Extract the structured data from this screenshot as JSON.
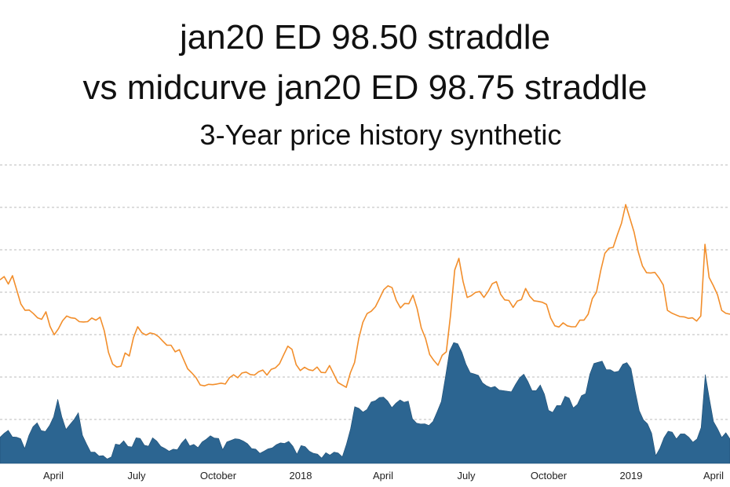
{
  "chart_data": {
    "type": "area",
    "title_line1": "jan20 ED 98.50 straddle",
    "title_line2": "vs midcurve jan20 ED 98.75 straddle",
    "subtitle": "3-Year price history synthetic",
    "x_tick_labels": [
      "April",
      "July",
      "October",
      "2018",
      "April",
      "July",
      "October",
      "2019",
      "April"
    ],
    "grid": true,
    "colors": {
      "line": "#f28e2b",
      "area": "#2c6591",
      "grid": "#bbbbbb",
      "axis_text": "#222222"
    },
    "series": [
      {
        "type": "line",
        "values": [
          61.5,
          62.6,
          60.1,
          62.9,
          58.1,
          53.4,
          51.3,
          51.4,
          50.2,
          48.8,
          48.3,
          50.8,
          45.9,
          43.1,
          45.1,
          47.8,
          49.4,
          48.8,
          48.6,
          47.5,
          47.4,
          47.5,
          48.7,
          48.0,
          49.0,
          44.4,
          37.2,
          33.3,
          32.3,
          32.6,
          37.0,
          36.0,
          42.2,
          45.8,
          43.8,
          43.0,
          43.7,
          43.4,
          42.5,
          41.0,
          39.6,
          39.6,
          37.4,
          38.1,
          34.9,
          31.7,
          30.3,
          28.7,
          26.3,
          26.0,
          26.5,
          26.4,
          26.6,
          26.9,
          26.6,
          28.7,
          29.7,
          28.7,
          30.3,
          30.6,
          29.8,
          29.6,
          30.7,
          31.3,
          29.6,
          31.5,
          32.0,
          33.4,
          36.4,
          39.3,
          38.2,
          33.1,
          31.1,
          32.2,
          31.4,
          31.1,
          32.3,
          30.5,
          30.4,
          32.8,
          30.0,
          27.1,
          26.3,
          25.5,
          30.4,
          33.8,
          41.8,
          47.3,
          50.2,
          51.0,
          52.5,
          55.3,
          58.2,
          59.5,
          58.9,
          54.6,
          52.1,
          53.6,
          53.5,
          56.4,
          51.9,
          45.4,
          41.9,
          36.5,
          34.5,
          32.9,
          36.2,
          37.4,
          49.5,
          64.8,
          68.7,
          61.0,
          55.6,
          56.2,
          57.3,
          57.6,
          55.6,
          57.6,
          60.2,
          60.9,
          56.7,
          54.8,
          54.6,
          52.3,
          54.4,
          54.9,
          58.6,
          56.0,
          54.5,
          54.3,
          54.0,
          53.3,
          48.7,
          46.1,
          45.7,
          47.1,
          46.1,
          45.8,
          45.8,
          48.0,
          48.0,
          50.0,
          55.2,
          57.4,
          64.6,
          70.4,
          72.1,
          72.4,
          76.6,
          80.5,
          86.7,
          82.1,
          77.5,
          70.9,
          66.2,
          63.9,
          63.8,
          64.0,
          62.1,
          59.8,
          51.3,
          50.4,
          49.8,
          49.2,
          49.1,
          48.6,
          48.8,
          47.7,
          49.4,
          73.4,
          62.3,
          59.6,
          56.5,
          51.3,
          50.3,
          50.0
        ]
      },
      {
        "type": "area",
        "values": [
          8.8,
          10.1,
          11.1,
          8.9,
          8.8,
          8.3,
          5.0,
          9.4,
          12.3,
          13.6,
          11.0,
          10.7,
          12.7,
          15.6,
          21.5,
          15.6,
          11.4,
          13.1,
          14.8,
          17.0,
          9.4,
          6.5,
          3.8,
          3.8,
          2.5,
          2.6,
          1.5,
          2.2,
          6.5,
          6.2,
          7.6,
          5.7,
          5.5,
          8.6,
          8.4,
          6.1,
          5.8,
          8.6,
          7.5,
          5.7,
          5.0,
          4.1,
          4.8,
          4.6,
          6.8,
          8.3,
          5.9,
          6.4,
          5.3,
          7.2,
          8.1,
          9.3,
          8.5,
          8.4,
          4.6,
          7.2,
          7.7,
          8.3,
          8.1,
          7.5,
          6.6,
          5.0,
          4.8,
          3.4,
          4.1,
          4.9,
          5.2,
          6.3,
          6.9,
          6.7,
          7.4,
          5.8,
          3.1,
          6.0,
          5.6,
          4.1,
          3.4,
          3.1,
          1.8,
          3.6,
          2.8,
          3.8,
          3.5,
          2.2,
          6.5,
          11.6,
          19.0,
          18.5,
          17.2,
          18.1,
          20.6,
          21.0,
          22.1,
          22.2,
          20.9,
          18.7,
          20.2,
          21.3,
          20.5,
          20.9,
          15.0,
          13.5,
          13.2,
          13.3,
          12.7,
          14.1,
          17.3,
          20.7,
          29.0,
          37.6,
          40.5,
          40.1,
          37.2,
          33.2,
          30.4,
          30.0,
          29.5,
          27.0,
          26.0,
          25.4,
          25.8,
          24.6,
          24.4,
          24.2,
          24.0,
          26.5,
          28.7,
          29.9,
          27.5,
          24.4,
          24.4,
          26.3,
          23.2,
          17.8,
          17.1,
          19.4,
          19.4,
          22.5,
          21.9,
          18.6,
          19.8,
          22.7,
          23.4,
          29.9,
          33.5,
          33.9,
          34.3,
          31.4,
          31.4,
          30.6,
          30.9,
          33.2,
          33.8,
          31.8,
          24.3,
          17.7,
          14.6,
          13.3,
          10.1,
          2.6,
          5.1,
          8.6,
          10.8,
          10.5,
          8.2,
          9.9,
          9.9,
          8.8,
          7.1,
          8.2,
          12.0,
          29.8,
          21.8,
          14.0,
          11.6,
          8.7,
          10.3,
          8.2
        ]
      }
    ]
  }
}
